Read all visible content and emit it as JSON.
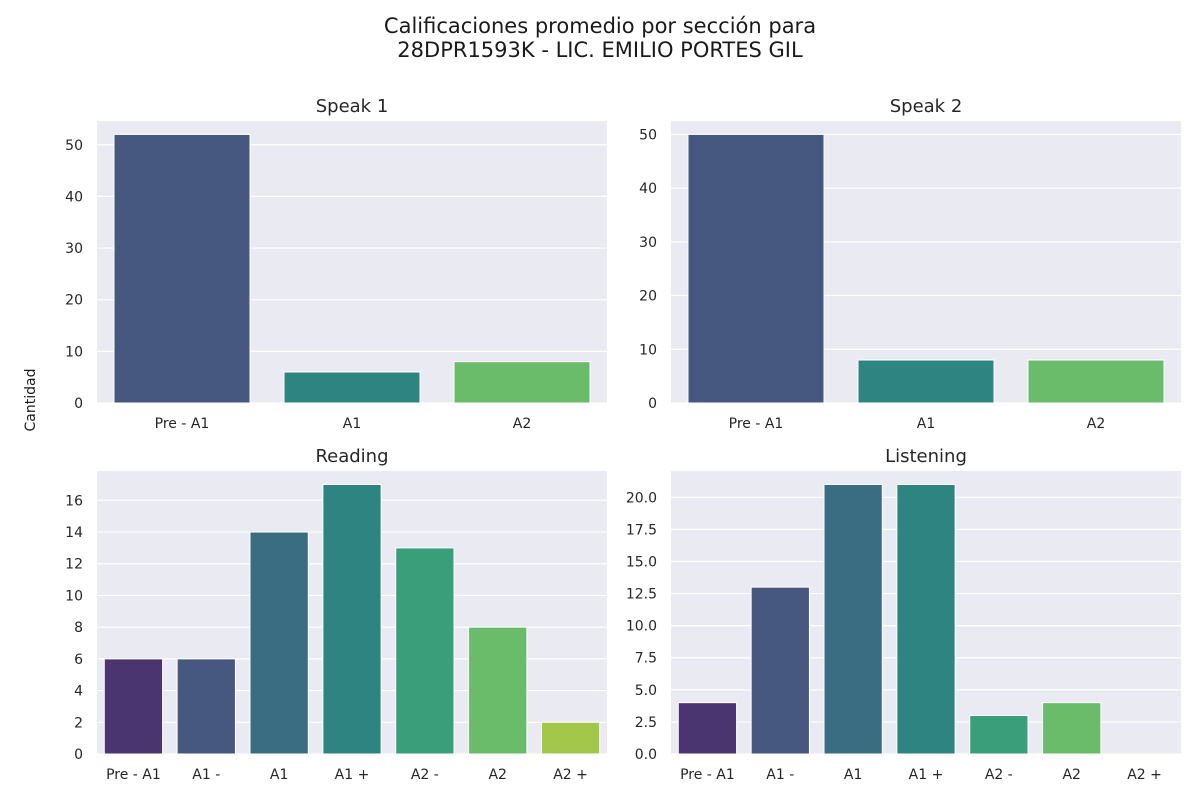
{
  "figure": {
    "title_line1": "Calificaciones promedio por sección para",
    "title_line2": "28DPR1593K - LIC. EMILIO PORTES GIL",
    "ylabel": "Cantidad"
  },
  "colors": {
    "background": "#eaeaf2",
    "grid": "#ffffff",
    "palette7": [
      "#4a3571",
      "#46587f",
      "#3a6d82",
      "#2e8480",
      "#3a9e7b",
      "#6abb6a",
      "#a2c74a"
    ],
    "palette3": [
      "#46587f",
      "#2e8480",
      "#6abb6a"
    ]
  },
  "chart_data": [
    {
      "type": "bar",
      "title": "Speak 1",
      "categories": [
        "Pre - A1",
        "A1",
        "A2"
      ],
      "values": [
        52,
        6,
        8
      ],
      "ylim": [
        0,
        54.6
      ],
      "yticks": [
        0,
        10,
        20,
        30,
        40,
        50
      ],
      "ytick_labels": [
        "0",
        "10",
        "20",
        "30",
        "40",
        "50"
      ],
      "grid": true
    },
    {
      "type": "bar",
      "title": "Speak 2",
      "categories": [
        "Pre - A1",
        "A1",
        "A2"
      ],
      "values": [
        50,
        8,
        8
      ],
      "ylim": [
        0,
        52.5
      ],
      "yticks": [
        0,
        10,
        20,
        30,
        40,
        50
      ],
      "ytick_labels": [
        "0",
        "10",
        "20",
        "30",
        "40",
        "50"
      ],
      "grid": true
    },
    {
      "type": "bar",
      "title": "Reading",
      "categories": [
        "Pre - A1",
        "A1 -",
        "A1",
        "A1 +",
        "A2 -",
        "A2",
        "A2 +"
      ],
      "values": [
        6,
        6,
        14,
        17,
        13,
        8,
        2
      ],
      "ylim": [
        0,
        17.85
      ],
      "yticks": [
        0,
        2,
        4,
        6,
        8,
        10,
        12,
        14,
        16
      ],
      "ytick_labels": [
        "0",
        "2",
        "4",
        "6",
        "8",
        "10",
        "12",
        "14",
        "16"
      ],
      "grid": true
    },
    {
      "type": "bar",
      "title": "Listening",
      "categories": [
        "Pre - A1",
        "A1 -",
        "A1",
        "A1 +",
        "A2 -",
        "A2",
        "A2 +"
      ],
      "values": [
        4,
        13,
        21,
        21,
        3,
        4,
        0
      ],
      "ylim": [
        0,
        22.05
      ],
      "yticks": [
        0,
        2.5,
        5,
        7.5,
        10,
        12.5,
        15,
        17.5,
        20
      ],
      "ytick_labels": [
        "0.0",
        "2.5",
        "5.0",
        "7.5",
        "10.0",
        "12.5",
        "15.0",
        "17.5",
        "20.0"
      ],
      "grid": true
    }
  ]
}
